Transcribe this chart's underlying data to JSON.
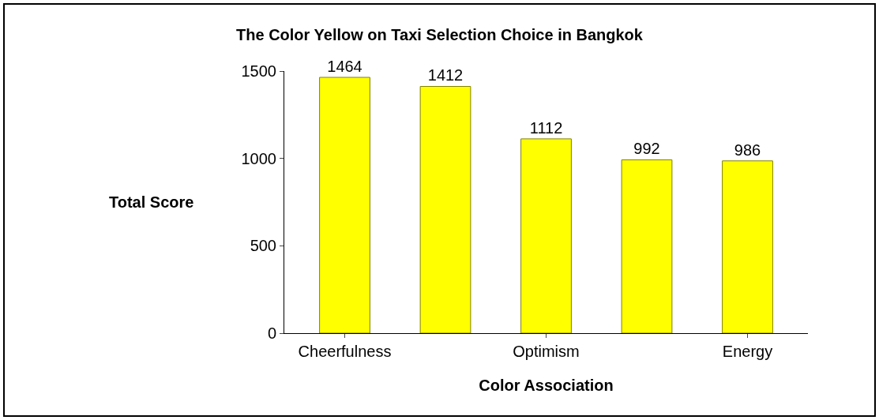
{
  "chart_data": {
    "type": "bar",
    "title": "The Color Yellow on Taxi Selection Choice in Bangkok",
    "xlabel": "Color Association",
    "ylabel": "Total Score",
    "categories": [
      "Cheerfulness",
      null,
      "Optimism",
      null,
      "Energy"
    ],
    "values": [
      1464,
      1412,
      1112,
      992,
      986
    ],
    "color": "#ffff00",
    "ylim": [
      0,
      1500
    ],
    "yticks": [
      0,
      500,
      1000,
      1500
    ],
    "data_labels": true
  }
}
